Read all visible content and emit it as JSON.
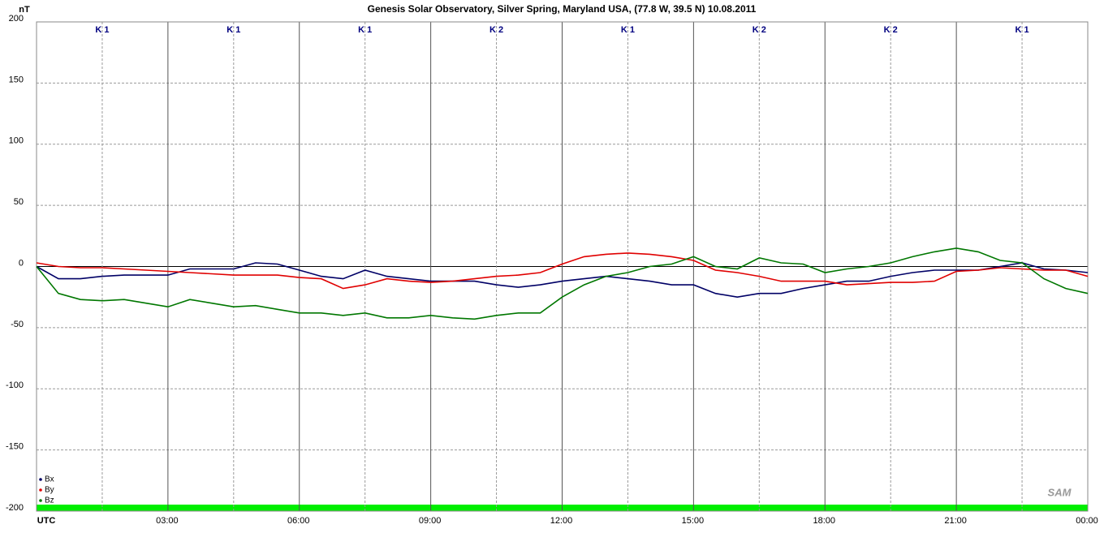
{
  "chart_data": {
    "type": "line",
    "title": "Genesis Solar Observatory, Silver Spring, Maryland USA, (77.8 W, 39.5 N)  10.08.2011",
    "ylabel": "nT",
    "x": [
      0,
      0.5,
      1,
      1.5,
      2,
      2.5,
      3,
      3.5,
      4,
      4.5,
      5,
      5.5,
      6,
      6.5,
      7,
      7.5,
      8,
      8.5,
      9,
      9.5,
      10,
      10.5,
      11,
      11.5,
      12,
      12.5,
      13,
      13.5,
      14,
      14.5,
      15,
      15.5,
      16,
      16.5,
      17,
      17.5,
      18,
      18.5,
      19,
      19.5,
      20,
      20.5,
      21,
      21.5,
      22,
      22.5,
      23,
      23.5,
      24
    ],
    "series": [
      {
        "name": "Bx",
        "color": "#000066",
        "values": [
          0,
          -10,
          -10,
          -8,
          -7,
          -7,
          -7,
          -2,
          -2,
          -2,
          3,
          2,
          -3,
          -8,
          -10,
          -3,
          -8,
          -10,
          -12,
          -12,
          -12,
          -15,
          -17,
          -15,
          -12,
          -10,
          -8,
          -10,
          -12,
          -15,
          -15,
          -22,
          -25,
          -22,
          -22,
          -18,
          -15,
          -12,
          -12,
          -8,
          -5,
          -3,
          -3,
          -3,
          0,
          3,
          -2,
          -3,
          -5
        ]
      },
      {
        "name": "By",
        "color": "#e00000",
        "values": [
          3,
          0,
          -1,
          -1,
          -2,
          -3,
          -4,
          -5,
          -6,
          -7,
          -7,
          -7,
          -9,
          -10,
          -18,
          -15,
          -10,
          -12,
          -13,
          -12,
          -10,
          -8,
          -7,
          -5,
          2,
          8,
          10,
          11,
          10,
          8,
          5,
          -3,
          -5,
          -8,
          -12,
          -12,
          -12,
          -15,
          -14,
          -13,
          -13,
          -12,
          -4,
          -3,
          -1,
          -2,
          -3,
          -3,
          -8
        ]
      },
      {
        "name": "Bz",
        "color": "#007700",
        "values": [
          0,
          -22,
          -27,
          -28,
          -27,
          -30,
          -33,
          -27,
          -30,
          -33,
          -32,
          -35,
          -38,
          -38,
          -40,
          -38,
          -42,
          -42,
          -40,
          -42,
          -43,
          -40,
          -38,
          -38,
          -25,
          -15,
          -8,
          -5,
          0,
          2,
          8,
          0,
          -2,
          7,
          3,
          2,
          -5,
          -2,
          0,
          3,
          8,
          12,
          15,
          12,
          5,
          3,
          -10,
          -18,
          -22
        ]
      }
    ],
    "xlim": [
      0,
      24
    ],
    "ylim": [
      -200,
      200
    ],
    "yticks": [
      200,
      150,
      100,
      50,
      0,
      -50,
      -100,
      -150,
      -200
    ],
    "xticks": [
      {
        "value": 0,
        "label": "UTC"
      },
      {
        "value": 3,
        "label": "03:00"
      },
      {
        "value": 6,
        "label": "06:00"
      },
      {
        "value": 9,
        "label": "09:00"
      },
      {
        "value": 12,
        "label": "12:00"
      },
      {
        "value": 15,
        "label": "15:00"
      },
      {
        "value": 18,
        "label": "18:00"
      },
      {
        "value": 21,
        "label": "21:00"
      },
      {
        "value": 24,
        "label": "00:00"
      }
    ],
    "minor_xticks": [
      1.5,
      4.5,
      7.5,
      10.5,
      13.5,
      16.5,
      19.5,
      22.5
    ],
    "k_index": [
      "K 1",
      "K 1",
      "K 1",
      "K 2",
      "K 1",
      "K 2",
      "K 2",
      "K 1"
    ],
    "logo": "SAM",
    "grid": true
  }
}
